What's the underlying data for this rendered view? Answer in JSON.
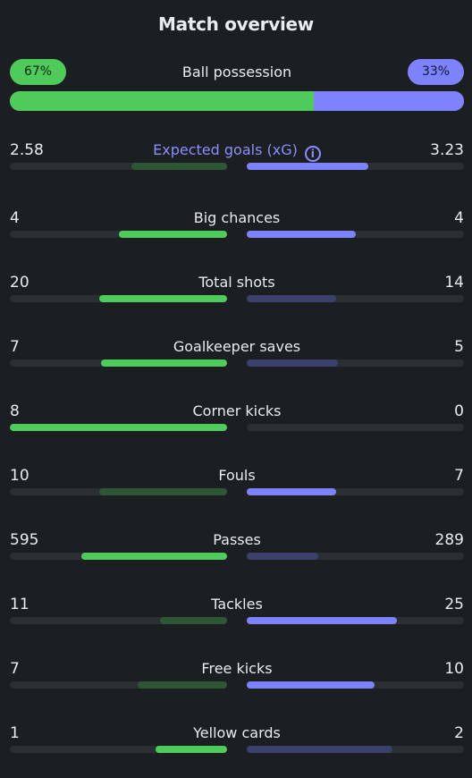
{
  "header": {
    "title": "Match overview"
  },
  "possession": {
    "label": "Ball possession",
    "home_label": "67%",
    "away_label": "33%",
    "home_value": 67,
    "away_value": 33
  },
  "stats": [
    {
      "label": "Expected goals (xG)",
      "home": "2.58",
      "away": "3.23",
      "home_fill": 0.44,
      "away_fill": 0.56,
      "home_win": false,
      "away_win": true,
      "accent": true,
      "info_icon": "info-icon"
    },
    {
      "label": "Big chances",
      "home": "4",
      "away": "4",
      "home_fill": 0.5,
      "away_fill": 0.5,
      "home_win": true,
      "away_win": true
    },
    {
      "label": "Total shots",
      "home": "20",
      "away": "14",
      "home_fill": 0.59,
      "away_fill": 0.41,
      "home_win": true,
      "away_win": false
    },
    {
      "label": "Goalkeeper saves",
      "home": "7",
      "away": "5",
      "home_fill": 0.58,
      "away_fill": 0.42,
      "home_win": true,
      "away_win": false
    },
    {
      "label": "Corner kicks",
      "home": "8",
      "away": "0",
      "home_fill": 1.0,
      "away_fill": 0.0,
      "home_win": true,
      "away_win": false
    },
    {
      "label": "Fouls",
      "home": "10",
      "away": "7",
      "home_fill": 0.59,
      "away_fill": 0.41,
      "home_win": false,
      "away_win": true
    },
    {
      "label": "Passes",
      "home": "595",
      "away": "289",
      "home_fill": 0.67,
      "away_fill": 0.33,
      "home_win": true,
      "away_win": false
    },
    {
      "label": "Tackles",
      "home": "11",
      "away": "25",
      "home_fill": 0.31,
      "away_fill": 0.69,
      "home_win": false,
      "away_win": true
    },
    {
      "label": "Free kicks",
      "home": "7",
      "away": "10",
      "home_fill": 0.41,
      "away_fill": 0.59,
      "home_win": false,
      "away_win": true
    },
    {
      "label": "Yellow cards",
      "home": "1",
      "away": "2",
      "home_fill": 0.33,
      "away_fill": 0.67,
      "home_win": true,
      "away_win": false
    }
  ],
  "colors": {
    "home": "#4ecb5a",
    "away": "#7c83fd",
    "background": "#1b1f22"
  }
}
